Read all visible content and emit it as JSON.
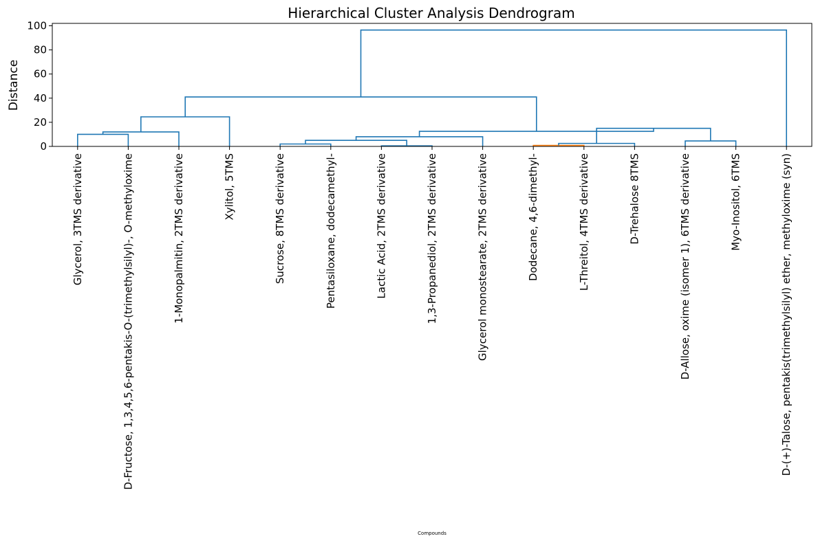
{
  "chart_data": {
    "type": "dendrogram",
    "title": "Hierarchical Cluster Analysis Dendrogram",
    "xlabel": "Compounds",
    "ylabel": "Distance",
    "ylim": [
      0,
      102
    ],
    "yticks": [
      0,
      20,
      40,
      60,
      80,
      100
    ],
    "grid": false,
    "leaves": [
      "Glycerol, 3TMS derivative",
      "D-Fructose, 1,3,4,5,6-pentakis-O-(trimethylsilyl)-, O-methyloxime",
      "1-Monopalmitin, 2TMS derivative",
      "Xylitol, 5TMS",
      "Sucrose, 8TMS derivative",
      "Pentasiloxane, dodecamethyl-",
      "Lactic Acid, 2TMS derivative",
      "1,3-Propanediol, 2TMS derivative",
      "Glycerol monostearate, 2TMS derivative",
      "Dodecane, 4,6-dimethyl-",
      "L-Threitol, 4TMS derivative",
      "D-Trehalose 8TMS",
      "D-Allose, oxime (isomer 1), 6TMS derivative",
      "Myo-Inositol, 6TMS",
      "D-(+)-Talose, pentakis(trimethylsilyl) ether, methyloxime (syn)"
    ],
    "links": [
      {
        "left": 0,
        "right": 1,
        "height": 10,
        "color": "#1f77b4"
      },
      {
        "left": 0.5,
        "right": 2,
        "height": 12,
        "color": "#1f77b4"
      },
      {
        "left": 1.25,
        "right": 3,
        "height": 24.5,
        "color": "#1f77b4"
      },
      {
        "left": 9,
        "right": 10,
        "height": 0.8,
        "color": "#ff7f0e"
      },
      {
        "left": 9.5,
        "right": 11,
        "height": 2.5,
        "color": "#1f77b4"
      },
      {
        "left": 12,
        "right": 13,
        "height": 4.5,
        "color": "#1f77b4"
      },
      {
        "left": 10.25,
        "right": 12.5,
        "height": 15,
        "color": "#1f77b4"
      },
      {
        "left": 4,
        "right": 5,
        "height": 2,
        "color": "#1f77b4"
      },
      {
        "left": 6,
        "right": 7,
        "height": 0.5,
        "color": "#1f77b4"
      },
      {
        "left": 4.5,
        "right": 6.5,
        "height": 5,
        "color": "#1f77b4"
      },
      {
        "left": 5.5,
        "right": 8,
        "height": 8,
        "color": "#1f77b4"
      },
      {
        "left": 6.75,
        "right": 11.375,
        "height": 12.5,
        "color": "#1f77b4"
      },
      {
        "left": 2.125,
        "right": 9.0625,
        "height": 41,
        "color": "#1f77b4"
      },
      {
        "left": 5.59375,
        "right": 14,
        "height": 96.5,
        "color": "#1f77b4"
      }
    ]
  }
}
